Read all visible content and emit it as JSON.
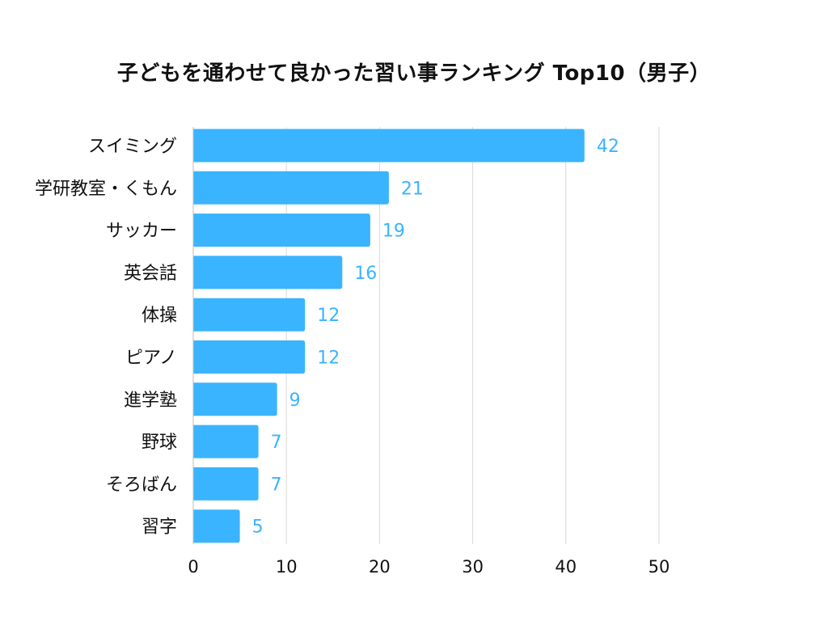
{
  "chart_data": {
    "type": "bar",
    "orientation": "horizontal",
    "title": "子どもを通わせて良かった習い事ランキング Top10（男子）",
    "categories": [
      "スイミング",
      "学研教室・くもん",
      "サッカー",
      "英会話",
      "体操",
      "ピアノ",
      "進学塾",
      "野球",
      "そろばん",
      "習字"
    ],
    "values": [
      42,
      21,
      19,
      16,
      12,
      12,
      9,
      7,
      7,
      5
    ],
    "xlim": [
      0,
      50
    ],
    "xticks": [
      0,
      10,
      20,
      30,
      40,
      50
    ],
    "xlabel": "",
    "ylabel": "",
    "grid": true,
    "legend": "none",
    "colors": {
      "bar": "#3AB4FF",
      "value_label": "#3AB4FF",
      "grid": "#D9D9D9",
      "axis": "#BDBDBD"
    }
  }
}
